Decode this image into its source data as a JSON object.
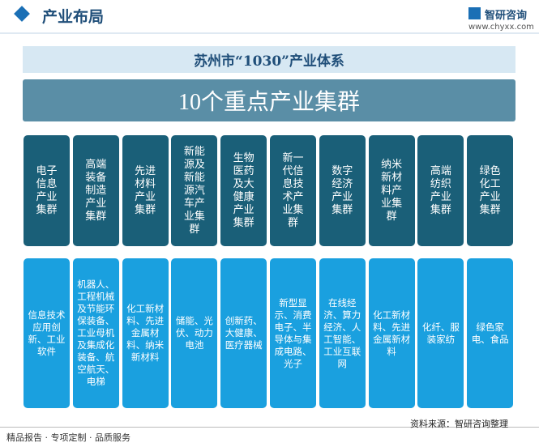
{
  "header": {
    "title": "产业布局",
    "logo": "智研咨询",
    "url": "www.chyxx.com"
  },
  "system_title": "苏州市“1030”产业体系",
  "banner": "10个重点产业集群",
  "clusters": [
    {
      "name": "电子信息产业集群",
      "fields": "信息技术应用创新、工业软件"
    },
    {
      "name": "高端装备制造产业集群",
      "fields": "机器人、工程机械及节能环保装备、工业母机及集成化装备、航空航天、电梯"
    },
    {
      "name": "先进材料产业集群",
      "fields": "化工新材料、先进金属材料、纳米新材料"
    },
    {
      "name": "新能源及新能源汽车产业集群",
      "fields": "储能、光伏、动力电池"
    },
    {
      "name": "生物医药及大健康产业集群",
      "fields": "创新药、大健康、医疗器械"
    },
    {
      "name": "新一代信息技术产业集群",
      "fields": "新型显示、消费电子、半导体与集成电路、光子"
    },
    {
      "name": "数字经济产业集群",
      "fields": "在线经济、算力经济、人工智能、工业互联网"
    },
    {
      "name": "纳米新材料产业集群",
      "fields": "化工新材料、先进金属新材料"
    },
    {
      "name": "高端纺织产业集群",
      "fields": "化纤、服装家纺"
    },
    {
      "name": "绿色化工产业集群",
      "fields": "绿色家电、食品"
    }
  ],
  "footer": {
    "slogan": "精品报告 · 专项定制 · 品质服务",
    "source": "资料来源：智研咨询整理"
  }
}
